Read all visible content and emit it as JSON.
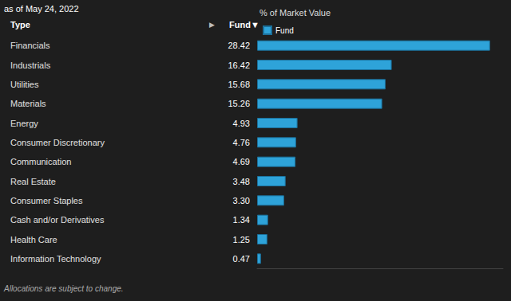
{
  "chart_data": {
    "type": "bar",
    "orientation": "horizontal",
    "title": "% of Market Value",
    "subtitle": "as of May 24, 2022",
    "ylabel": "Type",
    "annotations": [
      "▶",
      "Fund▼",
      "Allocations are subject to change."
    ],
    "categories": [
      "Financials",
      "Industrials",
      "Utilities",
      "Materials",
      "Energy",
      "Consumer Discretionary",
      "Communication",
      "Real Estate",
      "Consumer Staples",
      "Cash and/or Derivatives",
      "Health Care",
      "Information Technology"
    ],
    "series": [
      {
        "name": "Fund",
        "color": "#2ea3d9",
        "values": [
          28.42,
          16.42,
          15.68,
          15.26,
          4.93,
          4.76,
          4.69,
          3.48,
          3.3,
          1.34,
          1.25,
          0.47
        ],
        "value_labels": [
          "28.42",
          "16.42",
          "15.68",
          "15.26",
          "4.93",
          "4.76",
          "4.69",
          "3.48",
          "3.30",
          "1.34",
          "1.25",
          "0.47"
        ]
      }
    ],
    "xlim": [
      0,
      30
    ],
    "data_labels": true,
    "tick_labels": "y",
    "grid": false,
    "legend": "top-left"
  }
}
